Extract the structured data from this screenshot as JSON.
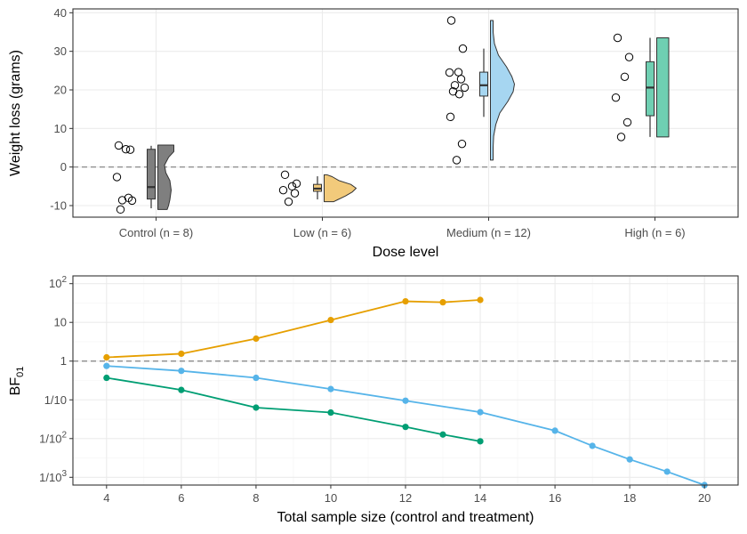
{
  "chart_data": [
    {
      "type": "raincloud",
      "title": "",
      "xlabel": "Dose level",
      "ylabel": "Weight loss (grams)",
      "ylim": [
        -13,
        41
      ],
      "yticks": [
        -10,
        0,
        10,
        20,
        30,
        40
      ],
      "reference_line_y": 0,
      "categories": [
        "Control (n = 8)",
        "Low (n = 6)",
        "Medium (n = 12)",
        "High (n = 6)"
      ],
      "groups": [
        {
          "name": "Control (n = 8)",
          "color": "#7f7f7f",
          "points": [
            5.6,
            4.5,
            4.6,
            -2.6,
            -8.0,
            -8.6,
            -8.7,
            -11.0
          ],
          "box": {
            "min": -10.7,
            "q1": -8.3,
            "median": -5.2,
            "q3": 4.6,
            "max": 5.5
          },
          "density": [
            [
              -11.0,
              0.35
            ],
            [
              -10.0,
              0.4
            ],
            [
              -8.5,
              0.45
            ],
            [
              -6.0,
              0.5
            ],
            [
              -3.5,
              0.45
            ],
            [
              -1.5,
              0.3
            ],
            [
              0.5,
              0.25
            ],
            [
              2.5,
              0.4
            ],
            [
              4.0,
              0.6
            ],
            [
              5.7,
              0.6
            ]
          ]
        },
        {
          "name": "Low (n = 6)",
          "color": "#f2ca7b",
          "points": [
            -2.0,
            -4.3,
            -5.0,
            -6.0,
            -6.8,
            -9.0
          ],
          "box": {
            "min": -8.4,
            "q1": -6.3,
            "median": -5.6,
            "q3": -4.5,
            "max": -2.4
          },
          "density": [
            [
              -9.0,
              0.35
            ],
            [
              -8.5,
              0.5
            ],
            [
              -7.5,
              0.8
            ],
            [
              -6.5,
              1.05
            ],
            [
              -5.5,
              1.2
            ],
            [
              -4.5,
              1.0
            ],
            [
              -3.5,
              0.55
            ],
            [
              -2.5,
              0.3
            ],
            [
              -2.0,
              0.1
            ]
          ]
        },
        {
          "name": "Medium (n = 12)",
          "color": "#a6d6f1",
          "points": [
            38.0,
            30.7,
            24.6,
            24.5,
            22.8,
            21.2,
            20.6,
            19.6,
            18.9,
            13.0,
            6.0,
            1.8
          ],
          "box": {
            "min": 13.0,
            "q1": 18.4,
            "median": 21.2,
            "q3": 24.6,
            "max": 30.7
          },
          "density": [
            [
              1.8,
              0.1
            ],
            [
              5.0,
              0.1
            ],
            [
              8.0,
              0.12
            ],
            [
              11.0,
              0.2
            ],
            [
              14.0,
              0.35
            ],
            [
              17.0,
              0.65
            ],
            [
              19.5,
              0.85
            ],
            [
              21.5,
              0.9
            ],
            [
              23.5,
              0.8
            ],
            [
              26.0,
              0.6
            ],
            [
              29.0,
              0.3
            ],
            [
              32.0,
              0.15
            ],
            [
              35.0,
              0.1
            ],
            [
              38.0,
              0.1
            ]
          ]
        },
        {
          "name": "High (n = 6)",
          "color": "#6fcfb2",
          "points": [
            33.5,
            28.5,
            23.4,
            18.0,
            11.6,
            7.8
          ],
          "box": {
            "min": 7.8,
            "q1": 13.3,
            "median": 20.6,
            "q3": 27.3,
            "max": 33.5
          },
          "density": [
            [
              7.8,
              0.45
            ],
            [
              10.0,
              0.45
            ],
            [
              14.0,
              0.45
            ],
            [
              18.0,
              0.45
            ],
            [
              22.0,
              0.45
            ],
            [
              26.0,
              0.45
            ],
            [
              30.0,
              0.45
            ],
            [
              33.5,
              0.45
            ]
          ]
        }
      ]
    },
    {
      "type": "line",
      "title": "",
      "xlabel": "Total sample size (control and treatment)",
      "ylabel": "BF",
      "ylabel_subscript": "01",
      "y_scale": "log10",
      "ylim_log10": [
        -3.2,
        2.2
      ],
      "xlim": [
        3.1,
        20.9
      ],
      "xticks": [
        4,
        6,
        8,
        10,
        12,
        14,
        16,
        18,
        20
      ],
      "yticks": [
        {
          "exp": 2,
          "base": "10",
          "sup": "2",
          "prefix": ""
        },
        {
          "exp": 1,
          "base": "10",
          "sup": "",
          "prefix": ""
        },
        {
          "exp": 0,
          "base": "1",
          "sup": "",
          "prefix": ""
        },
        {
          "exp": -1,
          "base": "10",
          "sup": "",
          "prefix": "1/"
        },
        {
          "exp": -2,
          "base": "10",
          "sup": "2",
          "prefix": "1/"
        },
        {
          "exp": -3,
          "base": "10",
          "sup": "3",
          "prefix": "1/"
        }
      ],
      "reference_line_y": 1,
      "series": [
        {
          "name": "orange",
          "color": "#E69F00",
          "x": [
            4,
            6,
            8,
            10,
            12,
            13,
            14
          ],
          "y": [
            1.25,
            1.55,
            3.8,
            11.5,
            35,
            33,
            38
          ]
        },
        {
          "name": "sky blue",
          "color": "#56B4E9",
          "x": [
            4,
            6,
            8,
            10,
            12,
            14,
            16,
            17,
            18,
            19,
            20
          ],
          "y": [
            0.75,
            0.56,
            0.37,
            0.19,
            0.095,
            0.048,
            0.016,
            0.0065,
            0.0029,
            0.0014,
            0.00063
          ]
        },
        {
          "name": "green",
          "color": "#009E73",
          "x": [
            4,
            6,
            8,
            10,
            12,
            13,
            14
          ],
          "y": [
            0.37,
            0.18,
            0.063,
            0.047,
            0.02,
            0.0127,
            0.0085
          ]
        }
      ]
    }
  ]
}
